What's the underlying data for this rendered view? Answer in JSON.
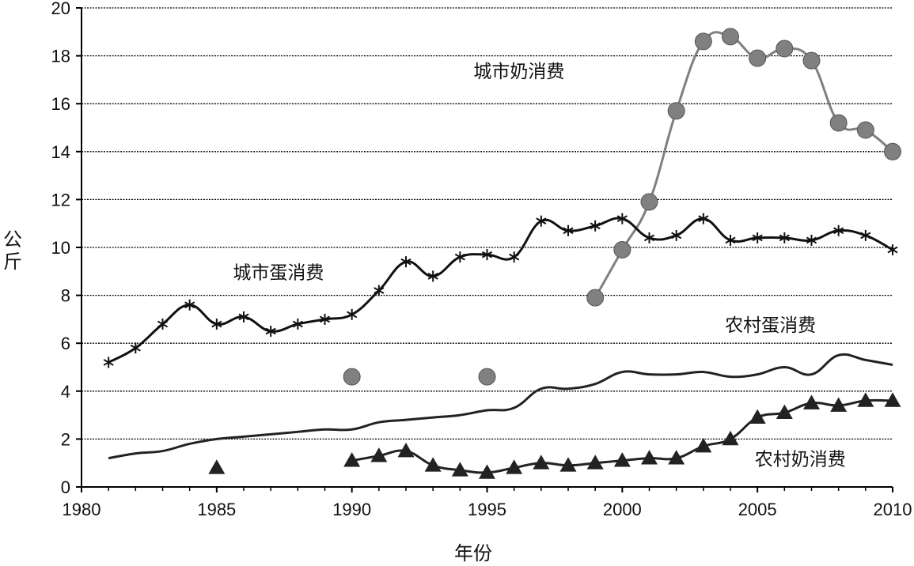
{
  "chart_data": {
    "type": "line",
    "xlabel": "年份",
    "ylabel": "公斤",
    "xlim": [
      1980,
      2010
    ],
    "ylim": [
      0,
      20
    ],
    "xticks": [
      1980,
      1985,
      1990,
      1995,
      2000,
      2005,
      2010
    ],
    "yticks": [
      0,
      2,
      4,
      6,
      8,
      10,
      12,
      14,
      16,
      18,
      20
    ],
    "grid": "horizontal dashed",
    "series": [
      {
        "name": "城市奶消费",
        "color": "#808080",
        "marker": "circle",
        "line": true,
        "label_pos": [
          1994.5,
          17.1
        ],
        "x": [
          1999,
          2000,
          2001,
          2002,
          2003,
          2004,
          2005,
          2006,
          2007,
          2008,
          2009,
          2010
        ],
        "y": [
          7.9,
          9.9,
          11.9,
          15.7,
          18.6,
          18.8,
          17.9,
          18.3,
          17.8,
          15.2,
          14.9,
          14.0
        ],
        "extra_points": [
          [
            1990,
            4.6
          ],
          [
            1995,
            4.6
          ]
        ]
      },
      {
        "name": "城市蛋消费",
        "color": "#111111",
        "marker": "asterisk",
        "line": true,
        "label_pos": [
          1985.6,
          8.7
        ],
        "x": [
          1981,
          1982,
          1983,
          1984,
          1985,
          1986,
          1987,
          1988,
          1989,
          1990,
          1991,
          1992,
          1993,
          1994,
          1995,
          1996,
          1997,
          1998,
          1999,
          2000,
          2001,
          2002,
          2003,
          2004,
          2005,
          2006,
          2007,
          2008,
          2009,
          2010
        ],
        "y": [
          5.2,
          5.8,
          6.8,
          7.6,
          6.8,
          7.1,
          6.5,
          6.8,
          7.0,
          7.2,
          8.2,
          9.4,
          8.8,
          9.6,
          9.7,
          9.6,
          11.1,
          10.7,
          10.9,
          11.2,
          10.4,
          10.5,
          11.2,
          10.3,
          10.4,
          10.4,
          10.3,
          10.7,
          10.5,
          9.9
        ]
      },
      {
        "name": "农村蛋消费",
        "color": "#222222",
        "marker": "none",
        "line": true,
        "label_pos": [
          2003.8,
          6.5
        ],
        "x": [
          1981,
          1982,
          1983,
          1984,
          1985,
          1986,
          1987,
          1988,
          1989,
          1990,
          1991,
          1992,
          1993,
          1994,
          1995,
          1996,
          1997,
          1998,
          1999,
          2000,
          2001,
          2002,
          2003,
          2004,
          2005,
          2006,
          2007,
          2008,
          2009,
          2010
        ],
        "y": [
          1.2,
          1.4,
          1.5,
          1.8,
          2.0,
          2.1,
          2.2,
          2.3,
          2.4,
          2.4,
          2.7,
          2.8,
          2.9,
          3.0,
          3.2,
          3.3,
          4.1,
          4.1,
          4.3,
          4.8,
          4.7,
          4.7,
          4.8,
          4.6,
          4.7,
          5.0,
          4.7,
          5.5,
          5.3,
          5.1
        ]
      },
      {
        "name": "农村奶消费",
        "color": "#222222",
        "marker": "triangle",
        "line": true,
        "label_pos": [
          2004.9,
          0.9
        ],
        "x": [
          1990,
          1991,
          1992,
          1993,
          1994,
          1995,
          1996,
          1997,
          1998,
          1999,
          2000,
          2001,
          2002,
          2003,
          2004,
          2005,
          2006,
          2007,
          2008,
          2009,
          2010
        ],
        "y": [
          1.1,
          1.3,
          1.5,
          0.9,
          0.7,
          0.6,
          0.8,
          1.0,
          0.9,
          1.0,
          1.1,
          1.2,
          1.2,
          1.7,
          2.0,
          2.9,
          3.1,
          3.5,
          3.4,
          3.6,
          3.6
        ],
        "extra_points": [
          [
            1985,
            0.8
          ]
        ]
      }
    ]
  }
}
